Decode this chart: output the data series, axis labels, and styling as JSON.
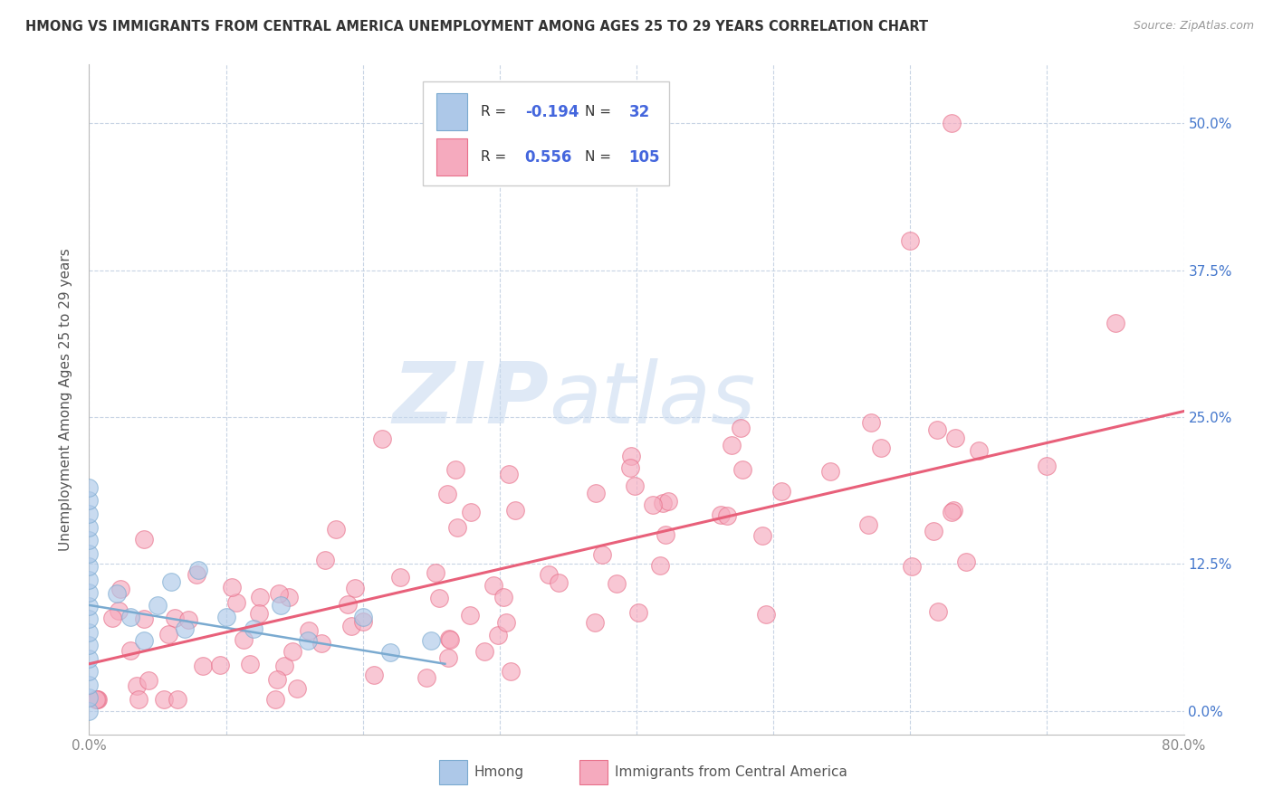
{
  "title": "HMONG VS IMMIGRANTS FROM CENTRAL AMERICA UNEMPLOYMENT AMONG AGES 25 TO 29 YEARS CORRELATION CHART",
  "source": "Source: ZipAtlas.com",
  "ylabel": "Unemployment Among Ages 25 to 29 years",
  "xlim": [
    0,
    0.8
  ],
  "ylim": [
    -0.02,
    0.55
  ],
  "xticks": [
    0.0,
    0.1,
    0.2,
    0.3,
    0.4,
    0.5,
    0.6,
    0.7,
    0.8
  ],
  "xticklabels": [
    "0.0%",
    "",
    "",
    "",
    "",
    "",
    "",
    "",
    "80.0%"
  ],
  "ytick_positions": [
    0.0,
    0.125,
    0.25,
    0.375,
    0.5
  ],
  "ytick_labels_right": [
    "0.0%",
    "12.5%",
    "25.0%",
    "37.5%",
    "50.0%"
  ],
  "hmong_R": -0.194,
  "hmong_N": 32,
  "central_R": 0.556,
  "central_N": 105,
  "hmong_color": "#adc8e8",
  "central_color": "#f5aabe",
  "hmong_edge_color": "#7aaad0",
  "central_edge_color": "#e8708a",
  "hmong_line_color": "#7aaad0",
  "central_line_color": "#e8607a",
  "watermark_zip": "ZIP",
  "watermark_atlas": "atlas",
  "watermark_color_zip": "#c5d8ef",
  "watermark_color_atlas": "#c5d8ef",
  "background_color": "#ffffff",
  "grid_color": "#c8d4e4",
  "legend_border_color": "#cccccc",
  "right_label_color": "#4477cc",
  "hmong_line_x": [
    0.0,
    0.26
  ],
  "hmong_line_y": [
    0.09,
    0.04
  ],
  "central_line_x": [
    0.0,
    0.8
  ],
  "central_line_y": [
    0.04,
    0.255
  ]
}
